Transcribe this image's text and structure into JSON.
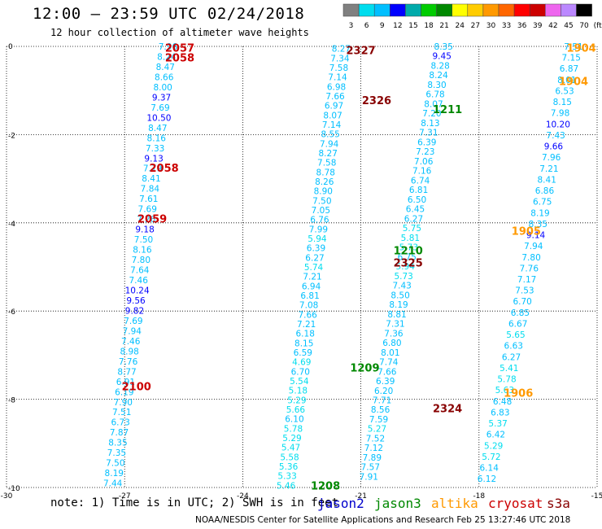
{
  "header": {
    "title": "12:00 – 23:59 UTC 02/24/2018",
    "subtitle": "12 hour collection of altimeter wave heights"
  },
  "colorbar": {
    "labels": [
      "3",
      "6",
      "9",
      "12",
      "15",
      "18",
      "21",
      "24",
      "27",
      "30",
      "33",
      "36",
      "39",
      "42",
      "45",
      "70"
    ],
    "unit": "(ft)",
    "colors": [
      "#808080",
      "#00ddee",
      "#00bfff",
      "#0000ff",
      "#00aaaa",
      "#00cc00",
      "#008800",
      "#ffff00",
      "#ffcc00",
      "#ff9900",
      "#ff6600",
      "#ff0000",
      "#cc0000",
      "#ee66ee",
      "#bb88ff",
      "#000000"
    ]
  },
  "note": "note: 1) Time is in UTC; 2) SWH is in feet",
  "legend": [
    {
      "name": "jason2",
      "color": "#0000cc"
    },
    {
      "name": "jason3",
      "color": "#008800"
    },
    {
      "name": "altika",
      "color": "#ff9900"
    },
    {
      "name": "cryosat",
      "color": "#cc0000"
    },
    {
      "name": "s3a",
      "color": "#880000"
    }
  ],
  "footer": "NOAA/NESDIS Center for Satellite Applications and Research   Feb 25 13:27:46 UTC 2018",
  "chart_data": {
    "type": "scatter",
    "xlim": [
      -30,
      -15
    ],
    "ylim": [
      -10,
      0
    ],
    "xticks": [
      "-30",
      "-27",
      "-24",
      "-21",
      "-18",
      "-15"
    ],
    "yticks": [
      "0",
      "-2",
      "-4",
      "-6",
      "-8",
      "-10"
    ],
    "grid": true,
    "passes": [
      {
        "label": "2057",
        "label_color": "#cc0000",
        "label_pos": [
          -25.6,
          -0.03
        ]
      },
      {
        "label": "2058",
        "label_color": "#cc0000",
        "label_pos": [
          -25.6,
          -0.25
        ]
      },
      {
        "label": "2058",
        "label_color": "#cc0000",
        "label_pos": [
          -26.0,
          -2.75
        ]
      },
      {
        "label": "2059",
        "label_color": "#cc0000",
        "label_pos": [
          -26.3,
          -3.9
        ]
      },
      {
        "label": "2100",
        "label_color": "#cc0000",
        "label_pos": [
          -26.7,
          -7.7
        ]
      },
      {
        "label": "2327",
        "label_color": "#880000",
        "label_pos": [
          -21.0,
          -0.08
        ]
      },
      {
        "label": "2326",
        "label_color": "#880000",
        "label_pos": [
          -20.6,
          -1.22
        ]
      },
      {
        "label": "2325",
        "label_color": "#880000",
        "label_pos": [
          -19.8,
          -4.9
        ]
      },
      {
        "label": "2324",
        "label_color": "#880000",
        "label_pos": [
          -18.8,
          -8.2
        ]
      },
      {
        "label": "1211",
        "label_color": "#008800",
        "label_pos": [
          -18.8,
          -1.42
        ]
      },
      {
        "label": "1210",
        "label_color": "#008800",
        "label_pos": [
          -19.8,
          -4.62
        ]
      },
      {
        "label": "1209",
        "label_color": "#008800",
        "label_pos": [
          -20.9,
          -7.28
        ]
      },
      {
        "label": "1208",
        "label_color": "#008800",
        "label_pos": [
          -21.9,
          -9.95
        ]
      },
      {
        "label": "1904",
        "label_color": "#ff9900",
        "label_pos": [
          -15.4,
          -0.03
        ]
      },
      {
        "label": "1904",
        "label_color": "#ff9900",
        "label_pos": [
          -15.6,
          -0.78
        ]
      },
      {
        "label": "1905",
        "label_color": "#ff9900",
        "label_pos": [
          -16.8,
          -4.18
        ]
      },
      {
        "label": "1906",
        "label_color": "#ff9900",
        "label_pos": [
          -17.0,
          -7.85
        ]
      }
    ],
    "tracks": [
      {
        "name": "track-a",
        "values": [
          "7.96",
          "8.24",
          "8.47",
          "8.66",
          "8.00",
          "9.37",
          "7.69",
          "10.50",
          "8.47",
          "8.16",
          "7.33",
          "9.13",
          "7.79",
          "8.41",
          "7.84",
          "7.61",
          "7.69",
          "7.26",
          "9.18",
          "7.50",
          "8.16",
          "7.80",
          "7.64",
          "7.46",
          "10.24",
          "9.56",
          "9.82",
          "7.69",
          "7.94",
          "7.46",
          "8.98",
          "7.76",
          "8.77",
          "6.91",
          "6.19",
          "7.90",
          "7.51",
          "6.73",
          "7.87",
          "8.35",
          "7.35",
          "7.50",
          "8.19",
          "7.44"
        ],
        "colors": [
          "#00bfff",
          "#00bfff",
          "#00bfff",
          "#00bfff",
          "#00bfff",
          "#0000ff",
          "#00bfff",
          "#0000ff",
          "#00bfff",
          "#00bfff",
          "#00bfff",
          "#0000ff",
          "#00bfff",
          "#00bfff",
          "#00bfff",
          "#00bfff",
          "#00bfff",
          "#00bfff",
          "#0000ff",
          "#00bfff",
          "#00bfff",
          "#00bfff",
          "#00bfff",
          "#00bfff",
          "#0000ff",
          "#0000ff",
          "#0000ff",
          "#00bfff",
          "#00bfff",
          "#00bfff",
          "#00bfff",
          "#00bfff",
          "#00bfff",
          "#00bfff",
          "#00bfff",
          "#00bfff",
          "#00bfff",
          "#00bfff",
          "#00bfff",
          "#00bfff",
          "#00bfff",
          "#00bfff",
          "#00bfff",
          "#00bfff"
        ],
        "x_start": -25.9,
        "x_end": -27.3,
        "y_start": 0.0,
        "y_end": -9.9
      },
      {
        "name": "track-b",
        "values": [
          "8.27",
          "7.34",
          "7.58",
          "7.14",
          "6.98",
          "7.66",
          "6.97",
          "8.07",
          "7.14",
          "8.55",
          "7.94",
          "8.27",
          "7.58",
          "8.78",
          "8.26",
          "8.90",
          "7.50",
          "7.05",
          "6.76",
          "7.99",
          "5.94",
          "6.39",
          "6.27",
          "5.74",
          "7.21",
          "6.94",
          "6.81",
          "7.08",
          "7.66",
          "7.21",
          "6.18",
          "8.15",
          "6.59",
          "4.69",
          "6.70",
          "5.54",
          "5.18",
          "5.29",
          "5.66",
          "6.10",
          "5.78",
          "5.29",
          "5.47",
          "5.58",
          "5.36",
          "5.33",
          "5.46"
        ],
        "colors": [
          "#00bfff",
          "#00bfff",
          "#00bfff",
          "#00bfff",
          "#00bfff",
          "#00bfff",
          "#00bfff",
          "#00bfff",
          "#00bfff",
          "#00bfff",
          "#00bfff",
          "#00bfff",
          "#00bfff",
          "#00bfff",
          "#00bfff",
          "#00bfff",
          "#00bfff",
          "#00bfff",
          "#00bfff",
          "#00bfff",
          "#00ddee",
          "#00bfff",
          "#00bfff",
          "#00ddee",
          "#00bfff",
          "#00bfff",
          "#00bfff",
          "#00bfff",
          "#00bfff",
          "#00bfff",
          "#00bfff",
          "#00bfff",
          "#00bfff",
          "#00ddee",
          "#00bfff",
          "#00ddee",
          "#00ddee",
          "#00ddee",
          "#00ddee",
          "#00bfff",
          "#00ddee",
          "#00ddee",
          "#00ddee",
          "#00ddee",
          "#00ddee",
          "#00ddee",
          "#00ddee"
        ],
        "x_start": -21.5,
        "x_end": -22.9,
        "y_start": -0.05,
        "y_end": -9.95
      },
      {
        "name": "track-c",
        "values": [
          "8.35",
          "9.45",
          "8.28",
          "8.24",
          "8.30",
          "6.78",
          "8.07",
          "7.20",
          "8.13",
          "7.31",
          "6.39",
          "7.23",
          "7.06",
          "7.16",
          "6.74",
          "6.81",
          "6.50",
          "6.45",
          "6.27",
          "5.75",
          "5.81",
          "5.73",
          "6.75",
          "5.94",
          "5.73",
          "7.43",
          "8.50",
          "8.19",
          "8.81",
          "7.31",
          "7.36",
          "6.80",
          "8.01",
          "7.74",
          "7.66",
          "6.39",
          "6.20",
          "7.71",
          "8.56",
          "7.59",
          "5.27",
          "7.52",
          "7.12",
          "7.89",
          "7.57",
          "7.91"
        ],
        "colors": [
          "#00bfff",
          "#0000ff",
          "#00bfff",
          "#00bfff",
          "#00bfff",
          "#00bfff",
          "#00bfff",
          "#00bfff",
          "#00bfff",
          "#00bfff",
          "#00bfff",
          "#00bfff",
          "#00bfff",
          "#00bfff",
          "#00bfff",
          "#00bfff",
          "#00bfff",
          "#00bfff",
          "#00bfff",
          "#00ddee",
          "#00ddee",
          "#00ddee",
          "#00bfff",
          "#00ddee",
          "#00ddee",
          "#00bfff",
          "#00bfff",
          "#00bfff",
          "#00bfff",
          "#00bfff",
          "#00bfff",
          "#00bfff",
          "#00bfff",
          "#00bfff",
          "#00bfff",
          "#00bfff",
          "#00bfff",
          "#00bfff",
          "#00bfff",
          "#00bfff",
          "#00ddee",
          "#00bfff",
          "#00bfff",
          "#00bfff",
          "#00bfff",
          "#00bfff"
        ],
        "x_start": -18.9,
        "x_end": -20.8,
        "y_start": 0.0,
        "y_end": -9.75
      },
      {
        "name": "track-d",
        "values": [
          "7.51",
          "7.15",
          "6.87",
          "8.01",
          "6.53",
          "8.15",
          "7.98",
          "10.20",
          "7.43",
          "9.66",
          "7.96",
          "7.21",
          "8.41",
          "6.86",
          "6.75",
          "8.19",
          "8.35",
          "9.14",
          "7.94",
          "7.80",
          "7.76",
          "7.17",
          "7.53",
          "6.70",
          "6.85",
          "6.67",
          "5.65",
          "6.63",
          "6.27",
          "5.41",
          "5.78",
          "5.63",
          "6.48",
          "6.83",
          "5.37",
          "6.42",
          "5.29",
          "5.72",
          "6.14",
          "6.12"
        ],
        "colors": [
          "#00bfff",
          "#00bfff",
          "#00bfff",
          "#00bfff",
          "#00bfff",
          "#00bfff",
          "#00bfff",
          "#0000ff",
          "#00bfff",
          "#0000ff",
          "#00bfff",
          "#00bfff",
          "#00bfff",
          "#00bfff",
          "#00bfff",
          "#00bfff",
          "#00bfff",
          "#0000ff",
          "#00bfff",
          "#00bfff",
          "#00bfff",
          "#00bfff",
          "#00bfff",
          "#00bfff",
          "#00bfff",
          "#00bfff",
          "#00ddee",
          "#00bfff",
          "#00bfff",
          "#00ddee",
          "#00ddee",
          "#00ddee",
          "#00bfff",
          "#00bfff",
          "#00ddee",
          "#00bfff",
          "#00ddee",
          "#00ddee",
          "#00bfff",
          "#00bfff"
        ],
        "x_start": -15.6,
        "x_end": -17.8,
        "y_start": 0.0,
        "y_end": -9.8
      }
    ]
  }
}
